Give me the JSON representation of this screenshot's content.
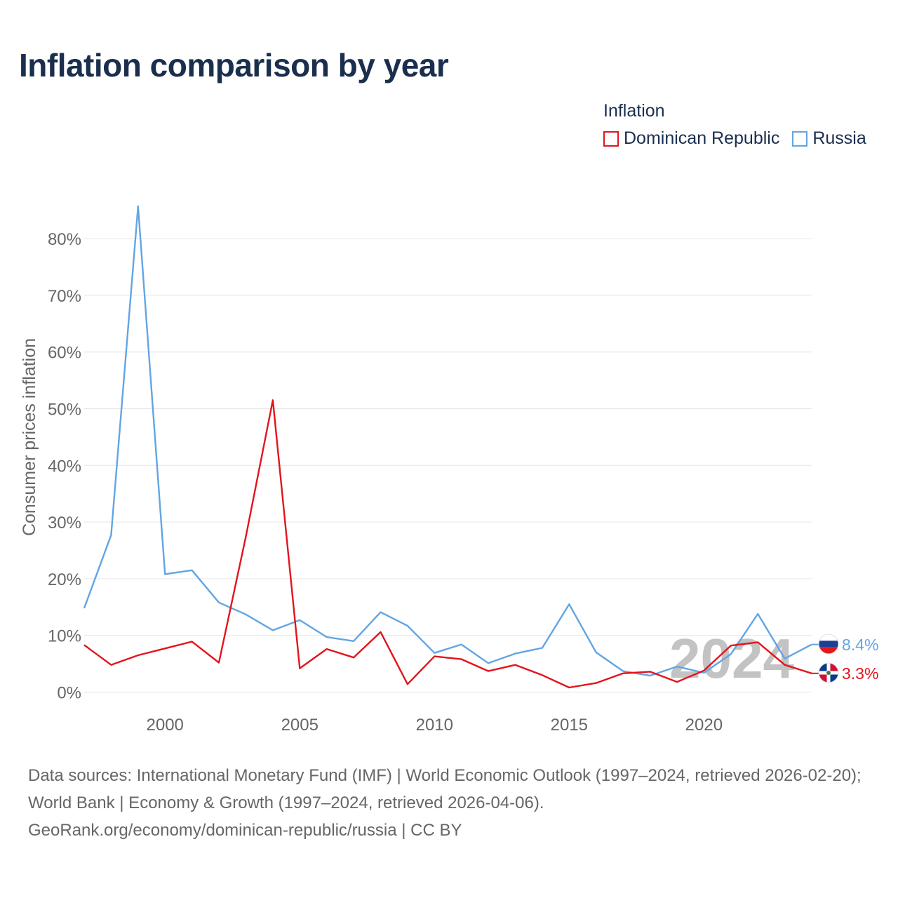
{
  "title": "Inflation comparison by year",
  "legend": {
    "title": "Inflation",
    "items": [
      {
        "label": "Dominican Republic",
        "color": "#e3141c"
      },
      {
        "label": "Russia",
        "color": "#62a5e4"
      }
    ]
  },
  "chart_data": {
    "type": "line",
    "title": "Inflation comparison by year",
    "xlabel": "",
    "ylabel": "Consumer prices inflation",
    "x": [
      1997,
      1998,
      1999,
      2000,
      2001,
      2002,
      2003,
      2004,
      2005,
      2006,
      2007,
      2008,
      2009,
      2010,
      2011,
      2012,
      2013,
      2014,
      2015,
      2016,
      2017,
      2018,
      2019,
      2020,
      2021,
      2022,
      2023,
      2024
    ],
    "xlim": [
      1997,
      2024
    ],
    "ylim": [
      -1,
      86
    ],
    "yticks": [
      0,
      10,
      20,
      30,
      40,
      50,
      60,
      70,
      80
    ],
    "ytick_labels": [
      "0%",
      "10%",
      "20%",
      "30%",
      "40%",
      "50%",
      "60%",
      "70%",
      "80%"
    ],
    "xticks": [
      2000,
      2005,
      2010,
      2015,
      2020
    ],
    "xtick_labels": [
      "2000",
      "2005",
      "2010",
      "2015",
      "2020"
    ],
    "grid": true,
    "legend_position": "top-right",
    "year_watermark": "2024",
    "series": [
      {
        "name": "Dominican Republic",
        "color": "#e3141c",
        "end_label": "3.3%",
        "values": [
          8.3,
          4.8,
          6.5,
          7.7,
          8.9,
          5.2,
          27.4,
          51.5,
          4.2,
          7.6,
          6.1,
          10.6,
          1.4,
          6.3,
          5.8,
          3.7,
          4.8,
          3.0,
          0.8,
          1.6,
          3.3,
          3.6,
          1.8,
          3.8,
          8.2,
          8.8,
          4.8,
          3.3
        ]
      },
      {
        "name": "Russia",
        "color": "#62a5e4",
        "end_label": "8.4%",
        "values": [
          14.8,
          27.7,
          85.7,
          20.8,
          21.5,
          15.8,
          13.7,
          10.9,
          12.7,
          9.7,
          9.0,
          14.1,
          11.7,
          6.9,
          8.4,
          5.1,
          6.8,
          7.8,
          15.5,
          7.0,
          3.7,
          2.9,
          4.5,
          3.4,
          6.7,
          13.8,
          5.9,
          8.4
        ]
      }
    ]
  },
  "footer": {
    "line1": "Data sources: International Monetary Fund (IMF) | World Economic Outlook (1997–2024, retrieved 2026-02-20); World Bank | Economy & Growth (1997–2024, retrieved 2026-04-06).",
    "line2": "GeoRank.org/economy/dominican-republic/russia | CC BY"
  }
}
